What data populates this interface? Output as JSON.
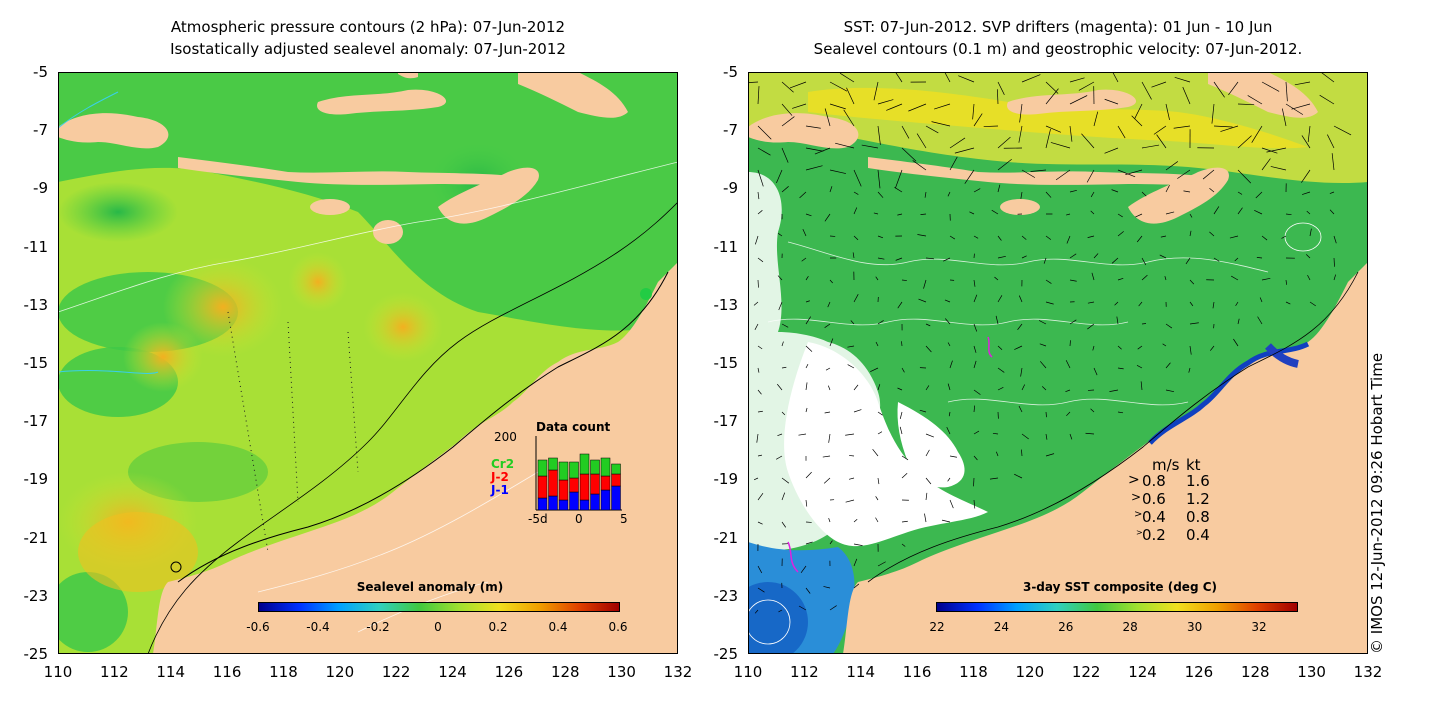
{
  "left_panel": {
    "title_line1": "Atmospheric pressure contours (2 hPa): 07-Jun-2012",
    "title_line2": "Isostatically adjusted sealevel anomaly: 07-Jun-2012",
    "colorbar_title": "Sealevel anomaly (m)",
    "colorbar_ticks": [
      "-0.6",
      "-0.4",
      "-0.2",
      "0",
      "0.2",
      "0.4",
      "0.6"
    ],
    "inset": {
      "title": "Data count",
      "ymax_label": "200",
      "legend": [
        {
          "label": "Cr2",
          "color": "#22cc22"
        },
        {
          "label": "J-2",
          "color": "#ff0000"
        },
        {
          "label": "J-1",
          "color": "#0000ff"
        }
      ],
      "x_ticks": [
        "-5d",
        "0",
        "5"
      ]
    }
  },
  "right_panel": {
    "title_line1": "SST: 07-Jun-2012. SVP drifters (magenta): 01 Jun - 10 Jun",
    "title_line2": "Sealevel contours (0.1 m) and geostrophic velocity: 07-Jun-2012.",
    "colorbar_title": "3-day SST composite (deg C)",
    "colorbar_ticks": [
      "22",
      "24",
      "26",
      "28",
      "30",
      "32"
    ],
    "speed_legend": {
      "header_ms": "m/s",
      "header_kt": "kt",
      "rows": [
        {
          "ms": "0.8",
          "kt": "1.6"
        },
        {
          "ms": "0.6",
          "kt": "1.2"
        },
        {
          "ms": "0.4",
          "kt": "0.8"
        },
        {
          "ms": "0.2",
          "kt": "0.4"
        }
      ]
    }
  },
  "y_axis_labels": [
    "-5",
    "-7",
    "-9",
    "-11",
    "-13",
    "-15",
    "-17",
    "-19",
    "-21",
    "-23",
    "-25"
  ],
  "x_axis_labels": [
    "110",
    "112",
    "114",
    "116",
    "118",
    "120",
    "122",
    "124",
    "126",
    "128",
    "130",
    "132"
  ],
  "timestamp": "© IMOS 12-Jun-2012 09:26 Hobart Time",
  "colors": {
    "land": "#f8cba0",
    "ocean_green": "#44cc44",
    "ocean_yellow": "#c8e832",
    "sst_green": "#33bb55",
    "cloud": "#ffffff"
  }
}
